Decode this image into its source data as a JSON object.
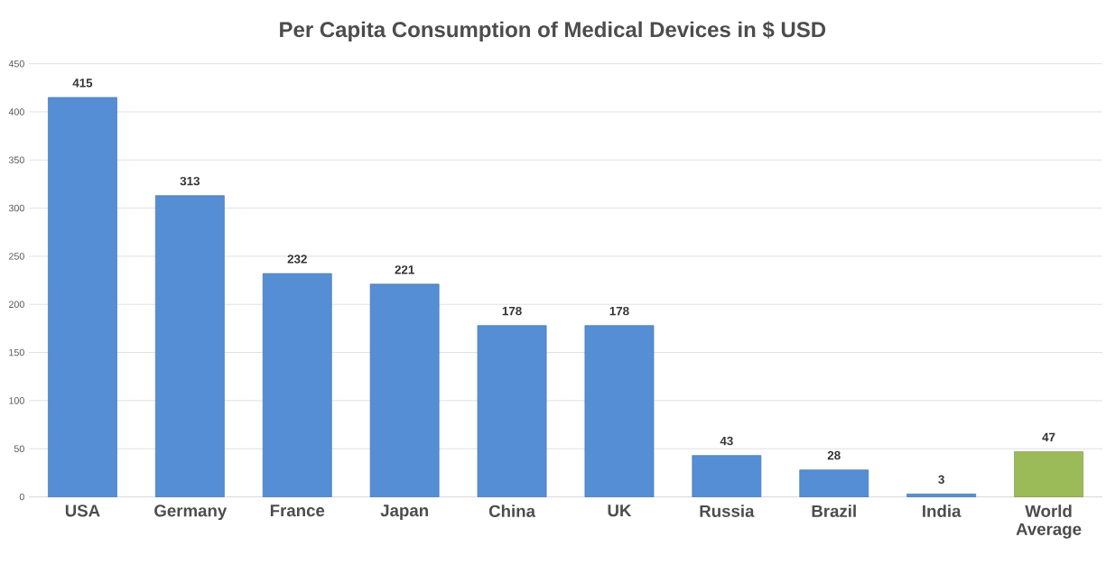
{
  "chart_data": {
    "type": "bar",
    "title": "Per Capita Consumption of Medical Devices in $ USD",
    "categories": [
      "USA",
      "Germany",
      "France",
      "Japan",
      "China",
      "UK",
      "Russia",
      "Brazil",
      "India",
      "World Average"
    ],
    "values": [
      415,
      313,
      232,
      221,
      178,
      178,
      43,
      28,
      3,
      47
    ],
    "colors": [
      "#558ed5",
      "#558ed5",
      "#558ed5",
      "#558ed5",
      "#558ed5",
      "#558ed5",
      "#558ed5",
      "#558ed5",
      "#558ed5",
      "#9bbb59"
    ],
    "ylim": [
      0,
      450
    ],
    "yticks": [
      0,
      50,
      100,
      150,
      200,
      250,
      300,
      350,
      400,
      450
    ],
    "grid": "y",
    "data_labels": true
  }
}
